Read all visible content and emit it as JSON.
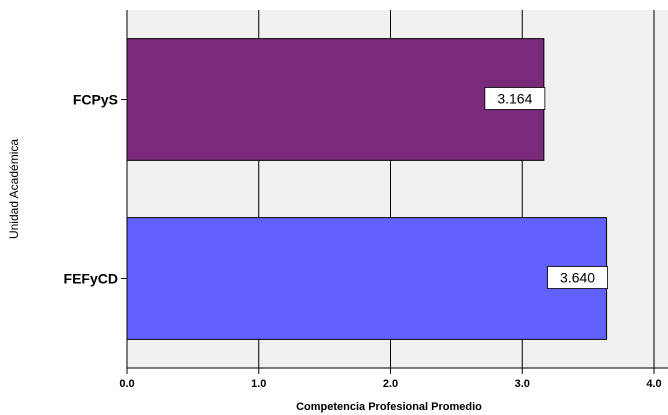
{
  "chart_data": {
    "type": "bar",
    "orientation": "horizontal",
    "categories": [
      "FCPyS",
      "FEFyCD"
    ],
    "values": [
      3.164,
      3.64
    ],
    "value_labels": [
      "3.164",
      "3.640"
    ],
    "xlabel": "Competencia Profesional Promedio",
    "ylabel": "Unidad Académica",
    "xlim": [
      0,
      4.0
    ],
    "xticks": [
      0,
      1,
      2,
      3,
      4
    ],
    "xtick_labels": [
      "0.0",
      "1.0",
      "2.0",
      "3.0",
      "4.0"
    ],
    "grid": true,
    "bar_colors": [
      "#7a2a7a",
      "#6161ff"
    ],
    "plot_background": "#f0f0f0"
  }
}
